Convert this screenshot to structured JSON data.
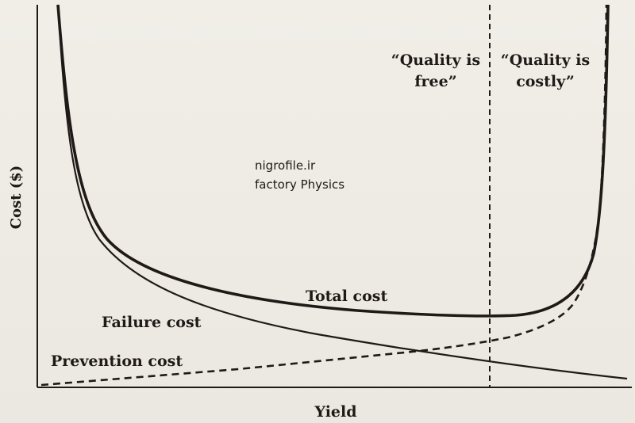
{
  "chart_data": {
    "type": "line",
    "xlabel": "Yield",
    "ylabel": "Cost ($)",
    "region_labels": [
      {
        "line1": "“Quality is",
        "line2": "free”"
      },
      {
        "line1": "“Quality is",
        "line2": "costly”"
      }
    ],
    "watermark": {
      "line1": "nigrofile.ir",
      "line2": "factory Physics"
    },
    "series": [
      {
        "name": "Total cost",
        "style": "solid",
        "weight": "heavy"
      },
      {
        "name": "Failure cost",
        "style": "solid",
        "weight": "normal"
      },
      {
        "name": "Prevention cost",
        "style": "dashed",
        "weight": "normal"
      }
    ],
    "ticks": "none",
    "grid": false,
    "colors": {
      "ink": "#1f1a17",
      "paper": "#ece9e2"
    }
  }
}
